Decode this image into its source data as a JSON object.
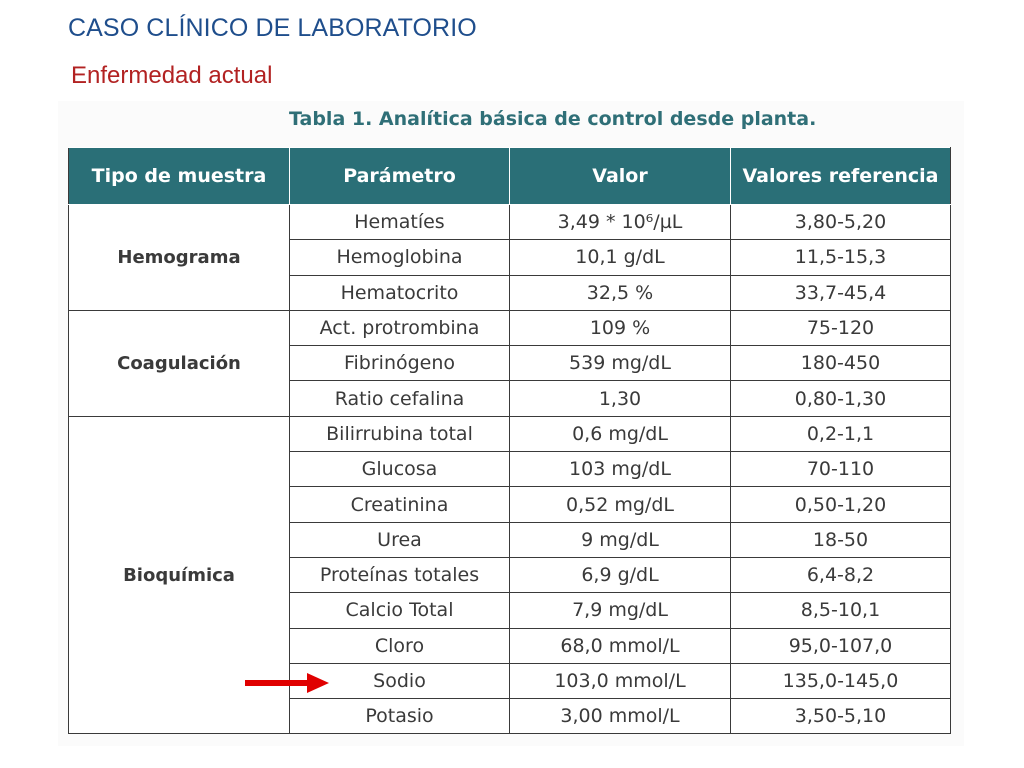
{
  "slide": {
    "title": "CASO CLÍNICO DE LABORATORIO",
    "subtitle": "Enfermedad actual"
  },
  "table": {
    "caption": "Tabla 1. Analítica básica de control desde planta.",
    "headers": [
      "Tipo de muestra",
      "Parámetro",
      "Valor",
      "Valores referencia"
    ],
    "groups": [
      {
        "name": "Hemograma",
        "rows": [
          {
            "parametro": "Hematíes",
            "valor": "3,49 * 10⁶/µL",
            "referencia": "3,80-5,20"
          },
          {
            "parametro": "Hemoglobina",
            "valor": "10,1 g/dL",
            "referencia": "11,5-15,3"
          },
          {
            "parametro": "Hematocrito",
            "valor": "32,5 %",
            "referencia": "33,7-45,4"
          }
        ]
      },
      {
        "name": "Coagulación",
        "rows": [
          {
            "parametro": "Act. protrombina",
            "valor": "109 %",
            "referencia": "75-120"
          },
          {
            "parametro": "Fibrinógeno",
            "valor": "539 mg/dL",
            "referencia": "180-450"
          },
          {
            "parametro": "Ratio cefalina",
            "valor": "1,30",
            "referencia": "0,80-1,30"
          }
        ]
      },
      {
        "name": "Bioquímica",
        "rows": [
          {
            "parametro": "Bilirrubina total",
            "valor": "0,6 mg/dL",
            "referencia": "0,2-1,1"
          },
          {
            "parametro": "Glucosa",
            "valor": "103 mg/dL",
            "referencia": "70-110"
          },
          {
            "parametro": "Creatinina",
            "valor": "0,52 mg/dL",
            "referencia": "0,50-1,20"
          },
          {
            "parametro": "Urea",
            "valor": "9 mg/dL",
            "referencia": "18-50"
          },
          {
            "parametro": "Proteínas totales",
            "valor": "6,9 g/dL",
            "referencia": "6,4-8,2"
          },
          {
            "parametro": "Calcio Total",
            "valor": "7,9 mg/dL",
            "referencia": "8,5-10,1"
          },
          {
            "parametro": "Cloro",
            "valor": "68,0 mmol/L",
            "referencia": "95,0-107,0"
          },
          {
            "parametro": "Sodio",
            "valor": "103,0 mmol/L",
            "referencia": "135,0-145,0"
          },
          {
            "parametro": "Potasio",
            "valor": "3,00 mmol/L",
            "referencia": "3,50-5,10"
          }
        ]
      }
    ]
  },
  "highlight": {
    "icon": "right-arrow-icon",
    "target_parametro": "Sodio",
    "color": "#e00000"
  },
  "colors": {
    "title": "#1f4e8c",
    "subtitle": "#b22222",
    "header_bg": "#2a6f77",
    "caption": "#2f6f77"
  }
}
